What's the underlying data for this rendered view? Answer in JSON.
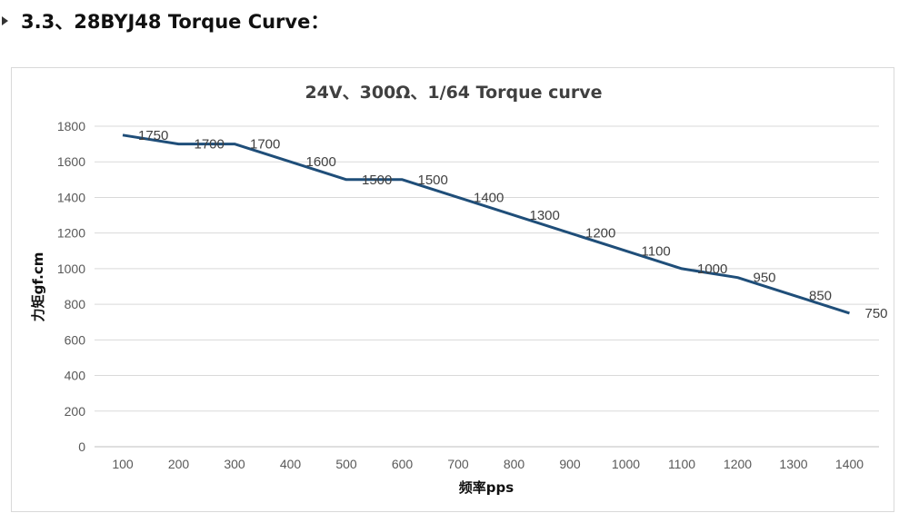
{
  "section": {
    "heading": "3.3、28BYJ48 Torque Curve："
  },
  "chart_data": {
    "type": "line",
    "title": "24V、300Ω、1/64 Torque curve",
    "xlabel": "频率pps",
    "ylabel": "力矩gf.cm",
    "x": [
      100,
      200,
      300,
      400,
      500,
      600,
      700,
      800,
      900,
      1000,
      1100,
      1200,
      1300,
      1400
    ],
    "series": [
      {
        "name": "Torque",
        "color": "#1f4e79",
        "values": [
          1750,
          1700,
          1700,
          1600,
          1500,
          1500,
          1400,
          1300,
          1200,
          1100,
          1000,
          950,
          850,
          750
        ]
      }
    ],
    "ylim": [
      0,
      1800
    ],
    "yticks": [
      0,
      200,
      400,
      600,
      800,
      1000,
      1200,
      1400,
      1600,
      1800
    ],
    "grid": true,
    "legend": "none"
  }
}
